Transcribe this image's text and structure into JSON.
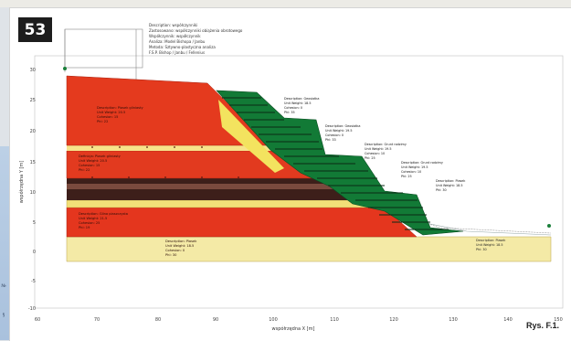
{
  "figure": {
    "number": "53",
    "caption": "Rys. F.1."
  },
  "side_strip": {
    "glyphs": [
      "№",
      "§"
    ]
  },
  "chart": {
    "axes": {
      "ylabel": "współrzędna Y [m]",
      "xlabel": "współrzędna X [m]",
      "y_ticks": [
        "30",
        "25",
        "20",
        "15",
        "10",
        "5",
        "0",
        "-5",
        "-10"
      ],
      "x_ticks": [
        "60",
        "70",
        "80",
        "90",
        "100",
        "110",
        "120",
        "130",
        "140",
        "150"
      ]
    },
    "legend_lines": [
      "Description: współczynniki",
      "Zastosowano: współczynniki obiążenia obrotowego",
      "Współczynnik: współczynnik",
      "Analiza: Model Bishopa / Janbu",
      "Metoda: Sztywno-plastyczna analiza",
      "F.S.P. Bishop / Janbu / Fellenius"
    ],
    "layers": [
      {
        "id": "top",
        "color": "#e4371f",
        "label_lines": [
          "Description: Piasek gliniasty",
          "Unit Weight: 20.5",
          "Cohesion: 15",
          "Phi: 22"
        ]
      },
      {
        "id": "second",
        "color": "#e4381c",
        "label_lines": [
          "Definicja: Piasek gliniasty",
          "Unit Weight: 20.5",
          "Cohesion: 15",
          "Phi: 22"
        ]
      },
      {
        "id": "middle",
        "color": "#e4361e",
        "label_lines": [
          "Description: Glina piaszczysta",
          "Unit Weight: 21.5",
          "Cohesion: 25",
          "Phi: 19"
        ]
      },
      {
        "id": "sand",
        "color": "#f3e7a0",
        "label_lines": [
          "Description: Piasek",
          "Unit Weight: 18.5",
          "Cohesion: 0",
          "Phi: 30"
        ]
      }
    ],
    "geogrid_labels": [
      {
        "id": "upper",
        "lines": [
          "Description: Geosiatka",
          "Unit Weight: 18.5",
          "Cohesion: 0",
          "Phi: 35"
        ]
      },
      {
        "id": "mid",
        "lines": [
          "Description: Geosiatka",
          "Unit Weight: 19.5",
          "Cohesion: 0",
          "Phi: 33"
        ]
      },
      {
        "id": "right-1",
        "lines": [
          "Description: Grunt rodzimy",
          "Unit Weight: 19.5",
          "Cohesion: 10",
          "Phi: 25"
        ]
      },
      {
        "id": "right-2",
        "lines": [
          "Description: Grunt rodzimy",
          "Unit Weight: 19.5",
          "Cohesion: 10",
          "Phi: 25"
        ]
      },
      {
        "id": "right-3",
        "lines": [
          "Description: Piasek",
          "Unit Weight: 18.5",
          "Phi: 30"
        ]
      }
    ],
    "bottom_right_lines": [
      "Description: Piasek",
      "Unit Weight: 18.5",
      "Phi: 30"
    ],
    "colors": {
      "red": "#e43a1e",
      "green": "#15803a",
      "yellow": "#f4e27a",
      "dark": "#3d1f1a",
      "sand": "#f5ecaa"
    }
  }
}
